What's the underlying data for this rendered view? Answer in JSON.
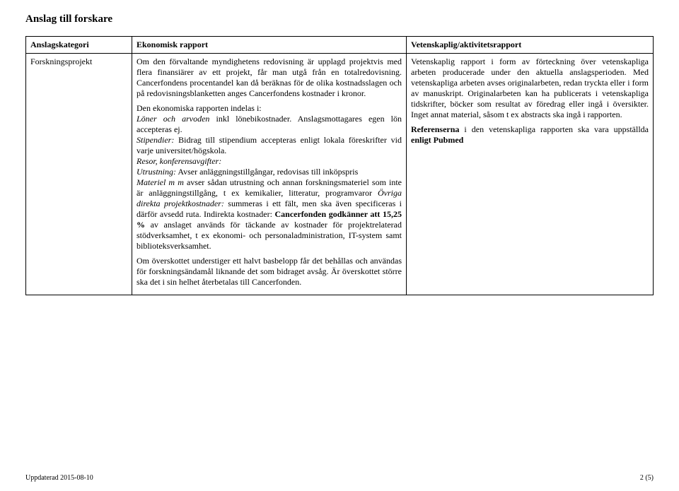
{
  "title": "Anslag till forskare",
  "table": {
    "headers": {
      "col1": "Anslagskategori",
      "col2": "Ekonomisk rapport",
      "col3": "Vetenskaplig/aktivitetsrapport"
    },
    "row": {
      "category": "Forskningsprojekt",
      "econ": {
        "p1": "Om den förvaltande myndighetens redovisning är upplagd projektvis med flera finansiärer av ett projekt, får man utgå från en totalredovisning. Cancerfondens procentandel kan då beräknas för de olika kostnadsslagen och på redovisningsblanketten anges Cancerfondens kostnader i kronor.",
        "p2_lead": "Den ekonomiska rapporten indelas i:",
        "p2_loner_it": "Löner och arvoden",
        "p2_loner_rest": " inkl lönebikostnader. Anslagsmottagares egen lön accepteras ej.",
        "p2_stip_it": "Stipendier:",
        "p2_stip_rest": " Bidrag till stipendium accepteras enligt lokala föreskrifter vid varje universitet/högskola.",
        "p2_resor_it": "Resor, konferensavgifter:",
        "p2_utr_it": "Utrustning:",
        "p2_utr_rest": " Avser anläggningstillgångar, redovisas till inköpspris",
        "p2_mat_it": "Materiel m m ",
        "p2_mat_rest": "avser sådan utrustning och annan forskningsmateriel som inte är anläggningstillgång, t ex kemikalier, litteratur, programvaror ",
        "p2_ovr_it": "Övriga direkta projektkostnader:",
        "p2_ovr_rest": " summeras i ett fält, men ska även specificeras i därför avsedd ruta. Indirekta kostnader: ",
        "p2_cf_bold": "Cancerfonden godkänner att 15,25 %",
        "p2_cf_rest": " av anslaget används för täckande av kostnader för projektrelaterad stödverksamhet, t ex ekonomi- och personaladministration, IT-system samt biblioteksverksamhet.",
        "p3": "Om överskottet understiger ett halvt basbelopp får det behållas och användas för forskningsändamål liknande det som bidraget avsåg. Är överskottet större ska det i sin helhet återbetalas till Cancerfonden."
      },
      "sci": {
        "p1": "Vetenskaplig rapport i form av förteckning över vetenskapliga arbeten producerade under den aktuella anslagsperioden. Med vetenskapliga arbeten avses originalarbeten, redan tryckta eller i form av manuskript. Originalarbeten kan ha publicerats i vetenskapliga tidskrifter, böcker som resultat av föredrag eller ingå i översikter. Inget annat material, såsom t ex abstracts ska ingå i rapporten.",
        "p2_bold1": "Referenserna",
        "p2_mid": " i den vetenskapliga rapporten ska vara uppställda ",
        "p2_bold2": "enligt Pubmed"
      }
    }
  },
  "footer": {
    "left": "Uppdaterad 2015-08-10",
    "right": "2 (5)"
  }
}
